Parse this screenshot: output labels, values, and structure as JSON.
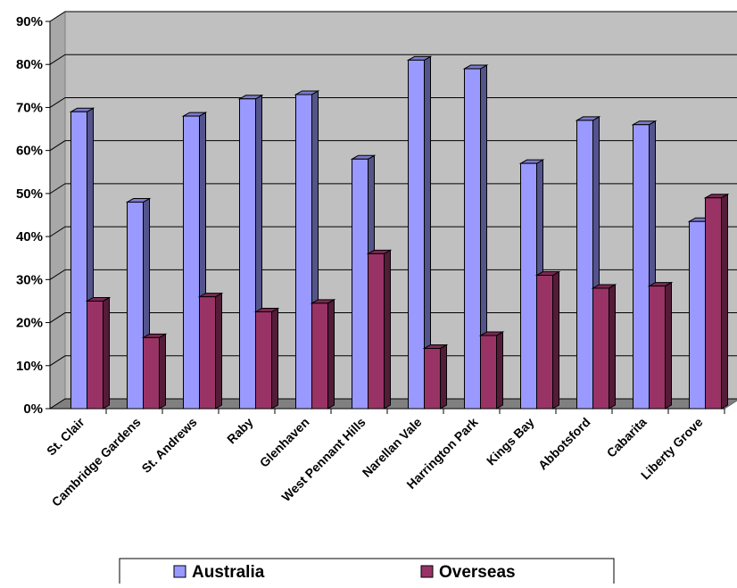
{
  "chart_data": {
    "type": "bar",
    "title": "",
    "xlabel": "",
    "ylabel": "",
    "ylim": [
      0,
      90
    ],
    "y_ticks": [
      "0%",
      "10%",
      "20%",
      "30%",
      "40%",
      "50%",
      "60%",
      "70%",
      "80%",
      "90%"
    ],
    "grid": true,
    "legend_position": "bottom",
    "categories": [
      "St. Clair",
      "Cambridge Gardens",
      "St. Andrews",
      "Raby",
      "Glenhaven",
      "West Pennant Hills",
      "Narellan Vale",
      "Harrington Park",
      "Kings Bay",
      "Abbotsford",
      "Cabarita",
      "Liberty Grove"
    ],
    "series": [
      {
        "name": "Australia",
        "color": "#9999ff",
        "values": [
          69,
          48,
          68,
          72,
          73,
          58,
          81,
          79,
          57,
          67,
          66,
          43.5
        ]
      },
      {
        "name": "Overseas",
        "color": "#993366",
        "values": [
          25,
          16.5,
          26,
          22.5,
          24.5,
          36,
          14,
          17,
          31,
          28,
          28.5,
          49
        ]
      }
    ]
  }
}
